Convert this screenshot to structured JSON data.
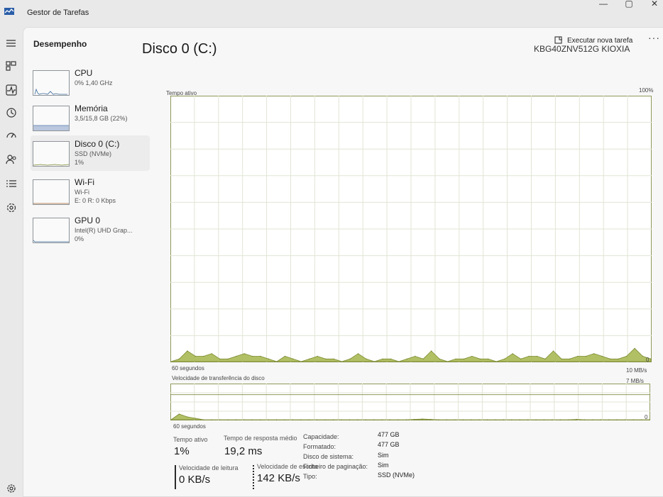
{
  "window": {
    "title": "Gestor de Tarefas",
    "controls": [
      "—",
      "▢",
      "✕"
    ]
  },
  "header": {
    "title": "Desempenho",
    "run_task": "Executar nova tarefa",
    "more": "···"
  },
  "sidebar": [
    {
      "name": "CPU",
      "sub": "0% 1,40 GHz",
      "sub2": ""
    },
    {
      "name": "Memória",
      "sub": "3,5/15,8 GB (22%)",
      "sub2": ""
    },
    {
      "name": "Disco 0 (C:)",
      "sub": "SSD (NVMe)",
      "sub2": "1%"
    },
    {
      "name": "Wi-Fi",
      "sub": "Wi-Fi",
      "sub2": "E: 0 R: 0 Kbps"
    },
    {
      "name": "GPU 0",
      "sub": "Intel(R) UHD Grap...",
      "sub2": "0%"
    }
  ],
  "disk": {
    "title": "Disco 0 (C:)",
    "model": "KBG40ZNV512G KIOXIA",
    "active_label": "Tempo ativo",
    "active_max": "100%",
    "active_min": "0",
    "time_span": "60 segundos",
    "transfer_label": "Velocidade de transferência do disco",
    "transfer_max": "10 MB/s",
    "transfer_mark": "7 MB/s",
    "transfer_min": "0"
  },
  "stats": {
    "active_time_label": "Tempo ativo",
    "active_time_value": "1%",
    "response_label": "Tempo de resposta médio",
    "response_value": "19,2 ms",
    "read_label": "Velocidade de leitura",
    "read_value": "0 KB/s",
    "write_label": "Velocidade de escrita",
    "write_value": "142 KB/s"
  },
  "info": [
    {
      "label": "Capacidade:",
      "value": "477 GB"
    },
    {
      "label": "Formatado:",
      "value": "477 GB"
    },
    {
      "label": "Disco de sistema:",
      "value": "Sim"
    },
    {
      "label": "Ficheiro de paginação:",
      "value": "Sim"
    },
    {
      "label": "Tipo:",
      "value": "SSD (NVMe)"
    }
  ],
  "chart_data": [
    {
      "type": "area",
      "title": "Tempo ativo",
      "ylim": [
        0,
        100
      ],
      "ylabel_max": "100%",
      "x_label": "60 segundos",
      "color": "#a4b54a",
      "values": [
        0,
        1,
        4,
        2,
        2,
        3,
        1,
        1,
        2,
        3,
        2,
        2,
        1,
        0,
        2,
        1,
        0,
        1,
        2,
        1,
        1,
        0,
        1,
        3,
        1,
        0,
        1,
        1,
        0,
        1,
        2,
        1,
        4,
        1,
        0,
        1,
        1,
        2,
        1,
        1,
        0,
        1,
        3,
        1,
        2,
        2,
        1,
        4,
        1,
        1,
        2,
        2,
        3,
        2,
        1,
        1,
        2,
        5,
        2,
        1
      ]
    },
    {
      "type": "area",
      "title": "Velocidade de transferência do disco",
      "ylim": [
        0,
        10
      ],
      "y_max_label": "10 MB/s",
      "reference_label": "7 MB/s",
      "x_label": "60 segundos",
      "color": "#a4b54a",
      "values": [
        0,
        1.6,
        0.8,
        0.4,
        0,
        0,
        0,
        0,
        0,
        0,
        0,
        0,
        0,
        0,
        0,
        0,
        0,
        0,
        0,
        0,
        0,
        0,
        0,
        0,
        0,
        0,
        0,
        0,
        0,
        0,
        0.1,
        0.2,
        0.1,
        0,
        0,
        0,
        0,
        0,
        0,
        0,
        0,
        0,
        0,
        0,
        0,
        0,
        0,
        0,
        0,
        0,
        0.1,
        0,
        0,
        0,
        0,
        0,
        0,
        0,
        0,
        0
      ]
    }
  ]
}
